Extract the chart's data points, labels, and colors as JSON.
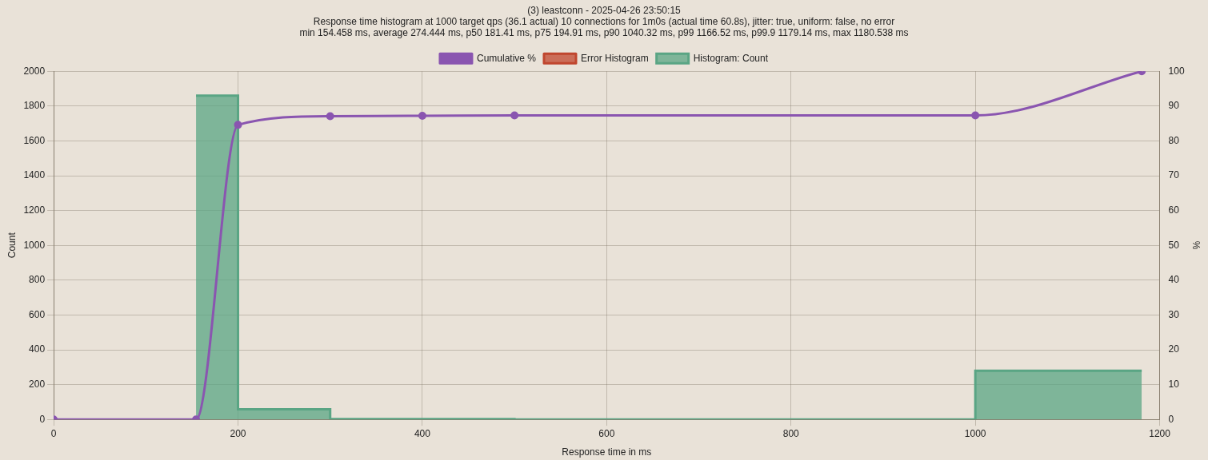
{
  "chart_data": {
    "type": "histogram",
    "title": "(3) leastconn - 2025-04-26 23:50:15",
    "subtitle": "Response time histogram at 1000 target qps (36.1 actual) 10 connections for 1m0s (actual time 60.8s), jitter: true, uniform: false, no error\nmin 154.458 ms, average 274.444 ms, p50 181.41 ms, p75 194.91 ms, p90 1040.32 ms, p99 1166.52 ms, p99.9 1179.14 ms, max 1180.538 ms",
    "xlabel": "Response time in ms",
    "ylabel": "Count",
    "y2label": "%",
    "bins": [
      154.458,
      200,
      300,
      400,
      500,
      1000,
      1180.538
    ],
    "series": [
      {
        "name": "Cumulative %",
        "type": "line",
        "axis": "y2",
        "color": "#8a55b0",
        "x": [
          0,
          154.458,
          200,
          300,
          400,
          500,
          1000,
          1180.538
        ],
        "values": [
          0,
          0,
          84.6,
          87.1,
          87.2,
          87.3,
          87.3,
          100
        ]
      },
      {
        "name": "Error Histogram",
        "type": "line",
        "color": "#c0462e"
      },
      {
        "name": "Histogram: Count",
        "color": "#5aa584",
        "values": [
          1860,
          58,
          2,
          2,
          0,
          280
        ]
      }
    ],
    "xlim": [
      0,
      1200
    ],
    "xticks": [
      0,
      200,
      400,
      600,
      800,
      1000,
      1200
    ],
    "ylim": [
      0,
      2000
    ],
    "yticks": [
      0,
      200,
      400,
      600,
      800,
      1000,
      1200,
      1400,
      1600,
      1800,
      2000
    ],
    "y2lim": [
      0,
      100
    ],
    "y2ticks": [
      0,
      10,
      20,
      30,
      40,
      50,
      60,
      70,
      80,
      90,
      100
    ],
    "grid": true,
    "legend": "top",
    "marker": "circle"
  }
}
